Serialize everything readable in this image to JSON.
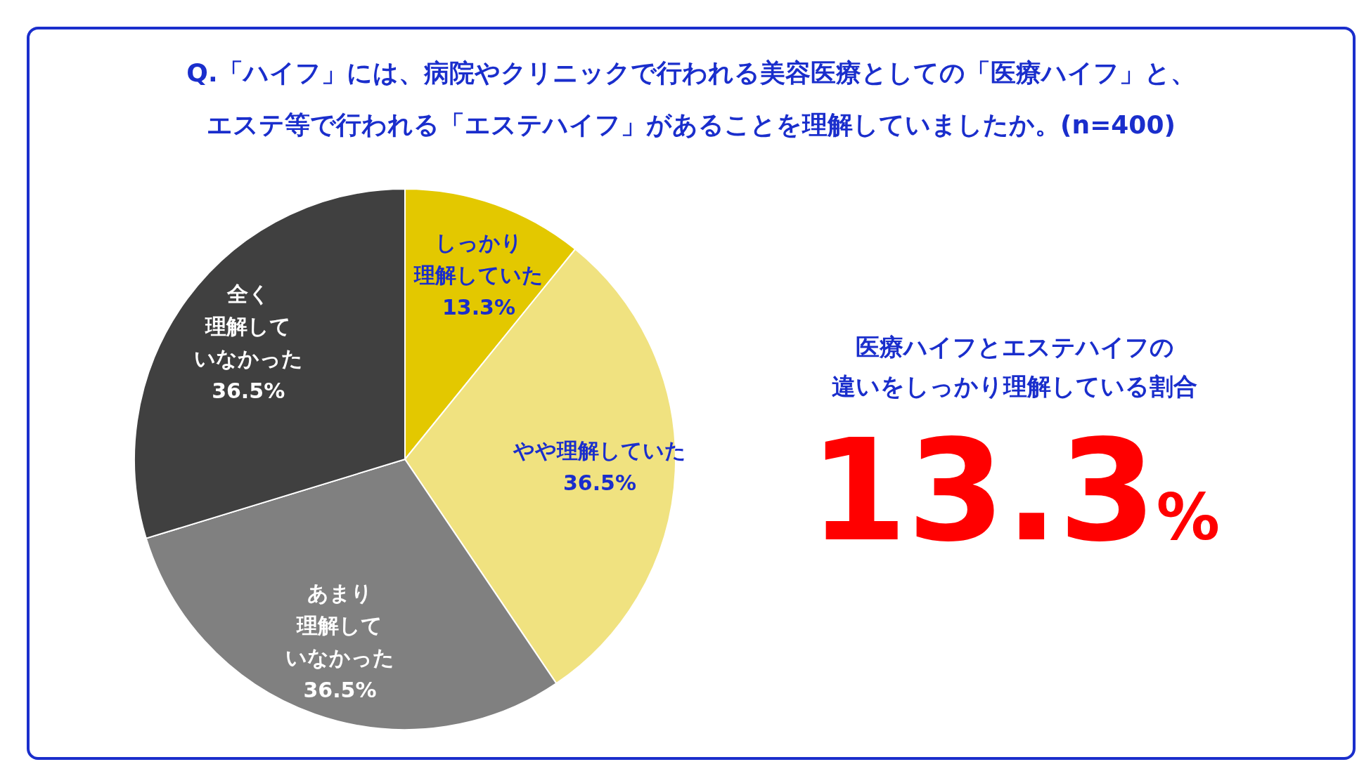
{
  "chart_data": {
    "type": "pie",
    "title": "Q.「ハイフ」には、病院やクリニックで行われる美容医療としての「医療ハイフ」と、エステ等で行われる「エステハイフ」があることを理解していましたか。(n=400)",
    "categories": [
      "しっかり理解していた",
      "やや理解していた",
      "あまり理解していなかった",
      "全く理解していなかった"
    ],
    "values": [
      13.3,
      36.5,
      36.5,
      36.5
    ],
    "value_labels": [
      "13.3%",
      "36.5%",
      "36.5%",
      "36.5%"
    ],
    "colors": [
      "#e3c800",
      "#f0e280",
      "#808080",
      "#404040"
    ],
    "annotations": [
      "医療ハイフとエステハイフの違いをしっかり理解している割合",
      "13.3%"
    ]
  }
}
